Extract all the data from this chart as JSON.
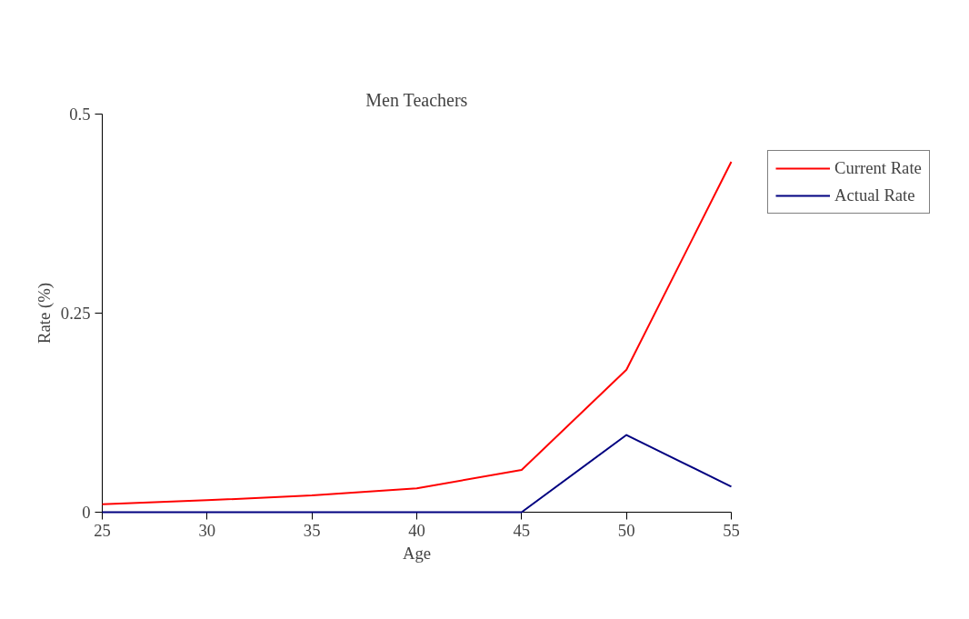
{
  "chart_data": {
    "type": "line",
    "title": "Men Teachers",
    "xlabel": "Age",
    "ylabel": "Rate (%)",
    "x": [
      25,
      30,
      35,
      40,
      45,
      50,
      55
    ],
    "series": [
      {
        "name": "Current Rate",
        "color": "#ff0000",
        "values": [
          0.01,
          0.015,
          0.021,
          0.03,
          0.053,
          0.179,
          0.44
        ]
      },
      {
        "name": "Actual Rate",
        "color": "#000080",
        "values": [
          0,
          0,
          0,
          0,
          0,
          0.097,
          0.032
        ]
      }
    ],
    "xlim": [
      25,
      55
    ],
    "xticks": [
      25,
      30,
      35,
      40,
      45,
      50,
      55
    ],
    "ylim": [
      0,
      0.5
    ],
    "yticks": [
      0,
      0.25,
      0.5
    ],
    "grid": false,
    "legend": "right",
    "marker": "none",
    "line_style": "solid"
  }
}
